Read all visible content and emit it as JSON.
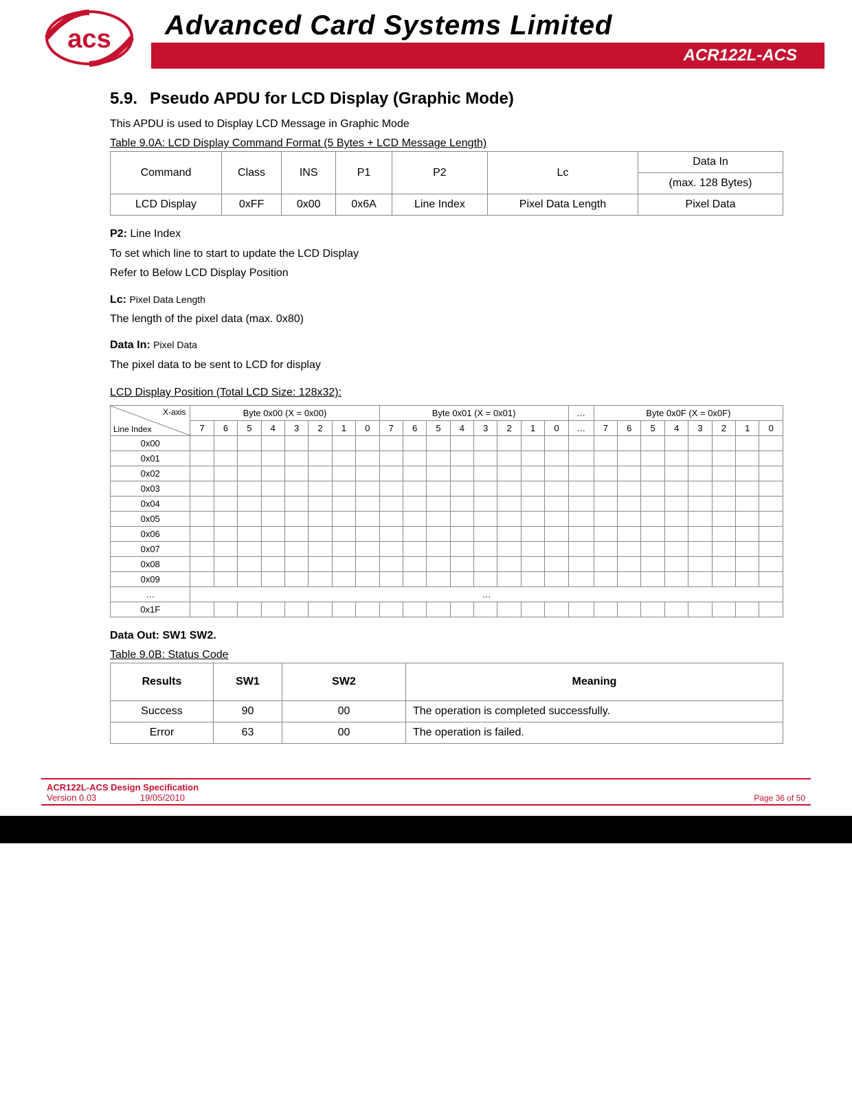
{
  "header": {
    "company_name": "Advanced Card Systems Limited",
    "product_code": "ACR122L-ACS",
    "logo_red": "#c41230",
    "logo_text": "acs"
  },
  "section": {
    "number": "5.9.",
    "title": "Pseudo APDU for LCD Display (Graphic Mode)",
    "intro": "This APDU is used to Display LCD Message in Graphic Mode"
  },
  "table1": {
    "caption": "Table 9.0A: LCD Display Command Format (5 Bytes + LCD Message Length)",
    "headers": [
      "Command",
      "Class",
      "INS",
      "P1",
      "P2",
      "Lc",
      "Data In"
    ],
    "header_sub": "(max. 128 Bytes)",
    "row": [
      "LCD Display",
      "0xFF",
      "0x00",
      "0x6A",
      "Line Index",
      "Pixel Data Length",
      "Pixel Data"
    ]
  },
  "p2_block": {
    "label": "P2:",
    "label_val": "Line Index",
    "line1": "To set which line to start to update the LCD Display",
    "line2": "Refer to Below LCD Display Position"
  },
  "lc_block": {
    "label": "Lc:",
    "label_val": "Pixel Data Length",
    "line1": "The length of the pixel data (max. 0x80)"
  },
  "datain_block": {
    "label": "Data In:",
    "label_val": "Pixel Data",
    "line1": "The pixel data to be sent to LCD for display"
  },
  "table2": {
    "caption": "LCD Display Position (Total LCD Size: 128x32):",
    "xaxis": "X-axis",
    "line_index": "Line Index",
    "byte_headers": [
      "Byte 0x00 (X = 0x00)",
      "Byte 0x01 (X = 0x01)",
      "…",
      "Byte 0x0F (X = 0x0F)"
    ],
    "bit_labels": [
      "7",
      "6",
      "5",
      "4",
      "3",
      "2",
      "1",
      "0"
    ],
    "dots": "…",
    "row_labels": [
      "0x00",
      "0x01",
      "0x02",
      "0x03",
      "0x04",
      "0x05",
      "0x06",
      "0x07",
      "0x08",
      "0x09",
      "…",
      "0x1F"
    ],
    "mid_dots": "…"
  },
  "data_out": {
    "label": "Data Out: SW1 SW2."
  },
  "table3": {
    "caption": "Table 9.0B: Status Code",
    "headers": [
      "Results",
      "SW1",
      "SW2",
      "Meaning"
    ],
    "rows": [
      [
        "Success",
        "90",
        "00",
        "The operation is completed successfully."
      ],
      [
        "Error",
        "63",
        "00",
        "The operation is failed."
      ]
    ]
  },
  "footer": {
    "spec": "ACR122L-ACS Design Specification",
    "version": "Version 0.03",
    "date": "19/05/2010",
    "page": "Page 36 of 50"
  }
}
